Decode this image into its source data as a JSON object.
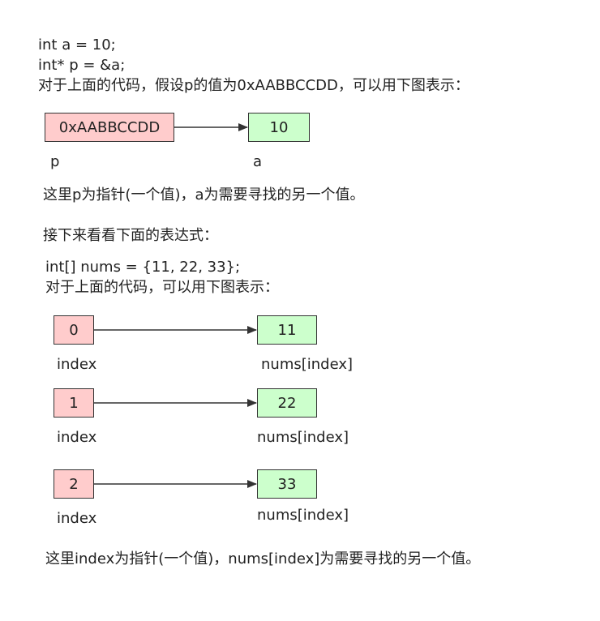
{
  "colors": {
    "pointer_fill": "#ffcccc",
    "value_fill": "#ccffcc",
    "border": "#333333",
    "arrow": "#333333"
  },
  "section1": {
    "code_line1": "int a = 10;",
    "code_line2": "int* p = &a;",
    "intro": "对于上面的代码，假设p的值为0xAABBCCDD，可以用下图表示：",
    "pointer_box": "0xAABBCCDD",
    "value_box": "10",
    "pointer_label": "p",
    "value_label": "a",
    "note": "这里p为指针(一个值)，a为需要寻找的另一个值。"
  },
  "section2": {
    "heading": "接下来看看下面的表达式：",
    "code_line": "int[] nums = {11, 22, 33};",
    "intro": "对于上面的代码，可以用下图表示：",
    "rows": [
      {
        "index": "0",
        "value": "11",
        "index_label": "index",
        "value_label": "nums[index]"
      },
      {
        "index": "1",
        "value": "22",
        "index_label": "index",
        "value_label": "nums[index]"
      },
      {
        "index": "2",
        "value": "33",
        "index_label": "index",
        "value_label": "nums[index]"
      }
    ],
    "note": "这里index为指针(一个值)，nums[index]为需要寻找的另一个值。"
  }
}
